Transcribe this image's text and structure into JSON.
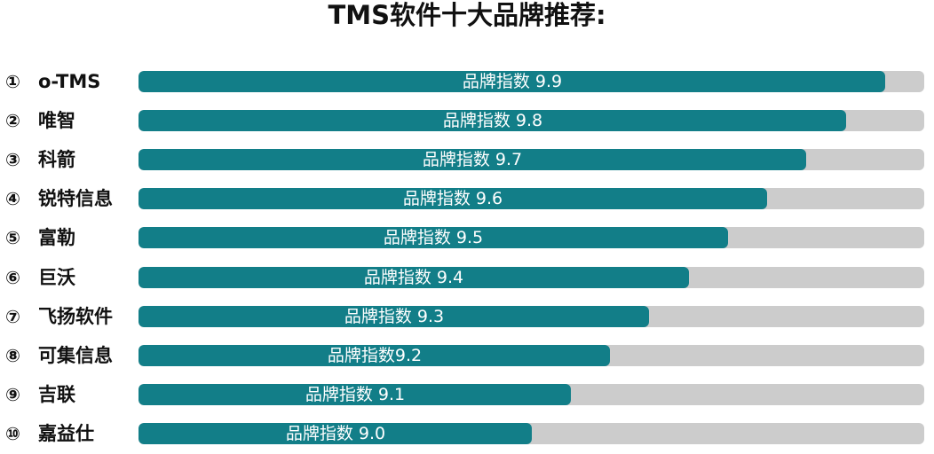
{
  "chart_data": {
    "type": "bar",
    "orientation": "horizontal",
    "title": "TMS软件十大品牌推荐:",
    "xlim": [
      8.0,
      10.0
    ],
    "categories": [
      "o-TMS",
      "唯智",
      "科箭",
      "锐特信息",
      "富勒",
      "巨沃",
      "飞扬软件",
      "可集信息",
      "吉联",
      "嘉益仕"
    ],
    "ranks": [
      "①",
      "②",
      "③",
      "④",
      "⑤",
      "⑥",
      "⑦",
      "⑧",
      "⑨",
      "⑩"
    ],
    "values": [
      9.9,
      9.8,
      9.7,
      9.6,
      9.5,
      9.4,
      9.3,
      9.2,
      9.1,
      9.0
    ],
    "data_labels": [
      "品牌指数 9.9",
      "品牌指数 9.8",
      "品牌指数 9.7",
      "品牌指数 9.6",
      "品牌指数 9.5",
      "品牌指数 9.4",
      "品牌指数 9.3",
      "品牌指数9.2",
      "品牌指数 9.1",
      "品牌指数 9.0"
    ],
    "grid": false,
    "colors": {
      "bar": "#127e88",
      "track": "#cccccc",
      "label": "#ffffff",
      "text": "#111111"
    }
  }
}
